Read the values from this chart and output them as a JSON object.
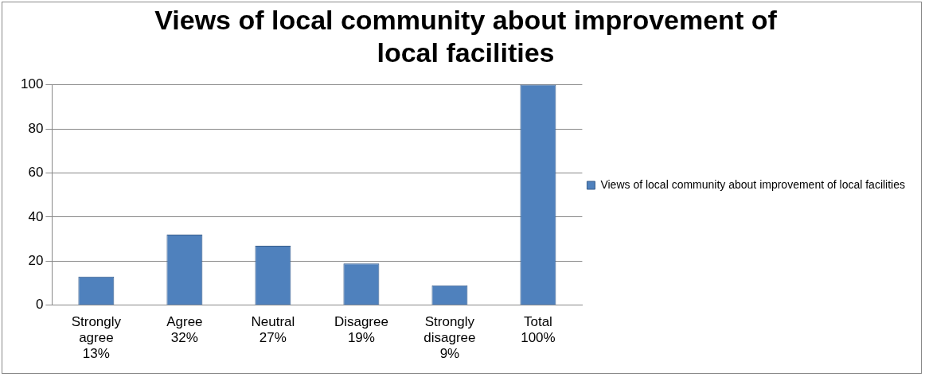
{
  "chart_data": {
    "type": "bar",
    "title": "Views of local community about improvement of local facilities",
    "categories": [
      "Strongly agree 13%",
      "Agree 32%",
      "Neutral 27%",
      "Disagree 19%",
      "Strongly disagree 9%",
      "Total 100%"
    ],
    "series": [
      {
        "name": "Views of local community about improvement of local facilities",
        "color": "#4f81bd",
        "values": [
          13,
          32,
          27,
          19,
          9,
          100
        ]
      }
    ],
    "ylim": [
      0,
      100
    ],
    "yticks": [
      0,
      20,
      40,
      60,
      80,
      100
    ],
    "grid": "y",
    "legend": "right"
  }
}
